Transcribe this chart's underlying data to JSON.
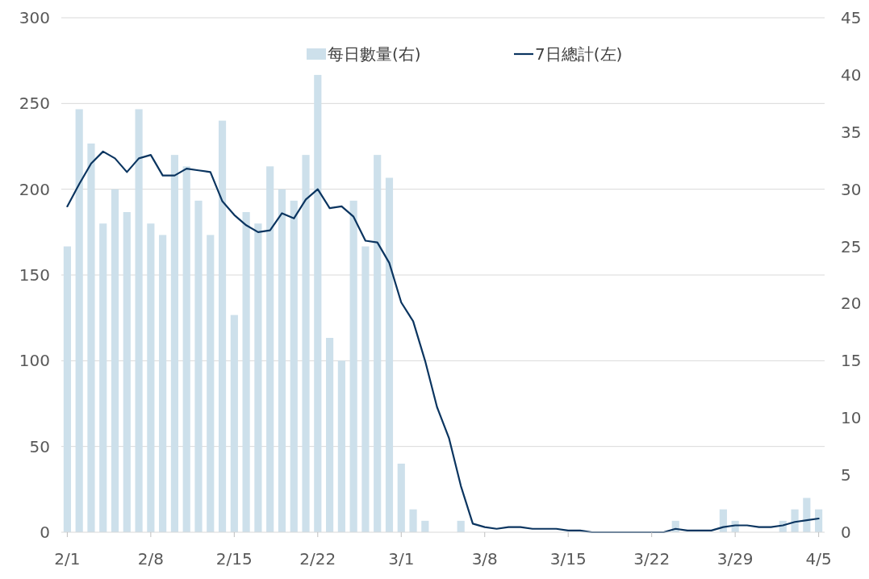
{
  "chart_data": {
    "type": "bar",
    "categories": [
      "2/1",
      null,
      null,
      null,
      null,
      null,
      null,
      "2/8",
      null,
      null,
      null,
      null,
      null,
      null,
      "2/15",
      null,
      null,
      null,
      null,
      null,
      null,
      "2/22",
      null,
      null,
      null,
      null,
      null,
      null,
      "3/1",
      null,
      null,
      null,
      null,
      null,
      null,
      "3/8",
      null,
      null,
      null,
      null,
      null,
      null,
      "3/15",
      null,
      null,
      null,
      null,
      null,
      null,
      "3/22",
      null,
      null,
      null,
      null,
      null,
      null,
      "3/29",
      null,
      null,
      null,
      null,
      null,
      null,
      "4/5"
    ],
    "series": [
      {
        "name": "每日數量(右)",
        "axis": "y2",
        "color": "#cde0eb",
        "values": [
          25,
          37,
          34,
          27,
          30,
          28,
          37,
          27,
          26,
          33,
          32,
          29,
          26,
          36,
          19,
          28,
          27,
          32,
          30,
          29,
          33,
          40,
          17,
          15,
          29,
          25,
          33,
          31,
          6,
          2,
          1,
          0,
          0,
          1,
          0,
          0,
          0,
          0,
          0,
          0,
          0,
          0,
          0,
          0,
          0,
          0,
          0,
          0,
          0,
          0,
          0,
          1,
          0,
          0,
          0,
          2,
          1,
          0,
          0,
          0,
          1,
          2,
          3,
          2
        ]
      },
      {
        "name": "7日總計(左)",
        "type": "line",
        "axis": "y",
        "color": "#0b3560",
        "values": [
          190,
          203,
          215,
          222,
          218,
          210,
          218,
          220,
          208,
          208,
          212,
          211,
          210,
          193,
          185,
          179,
          175,
          176,
          186,
          183,
          194,
          200,
          189,
          190,
          184,
          170,
          169,
          157,
          134,
          123,
          100,
          73,
          55,
          27,
          5,
          3,
          2,
          3,
          3,
          2,
          2,
          2,
          1,
          1,
          0,
          0,
          0,
          0,
          0,
          0,
          0,
          2,
          1,
          1,
          1,
          3,
          4,
          4,
          3,
          3,
          4,
          6,
          7,
          8
        ]
      }
    ],
    "ylim": [
      0,
      300
    ],
    "yticks": [
      0,
      50,
      100,
      150,
      200,
      250,
      300
    ],
    "y2lim": [
      0,
      45
    ],
    "y2ticks": [
      0,
      5,
      10,
      15,
      20,
      25,
      30,
      35,
      40,
      45
    ],
    "grid": "y",
    "legend": "top"
  }
}
